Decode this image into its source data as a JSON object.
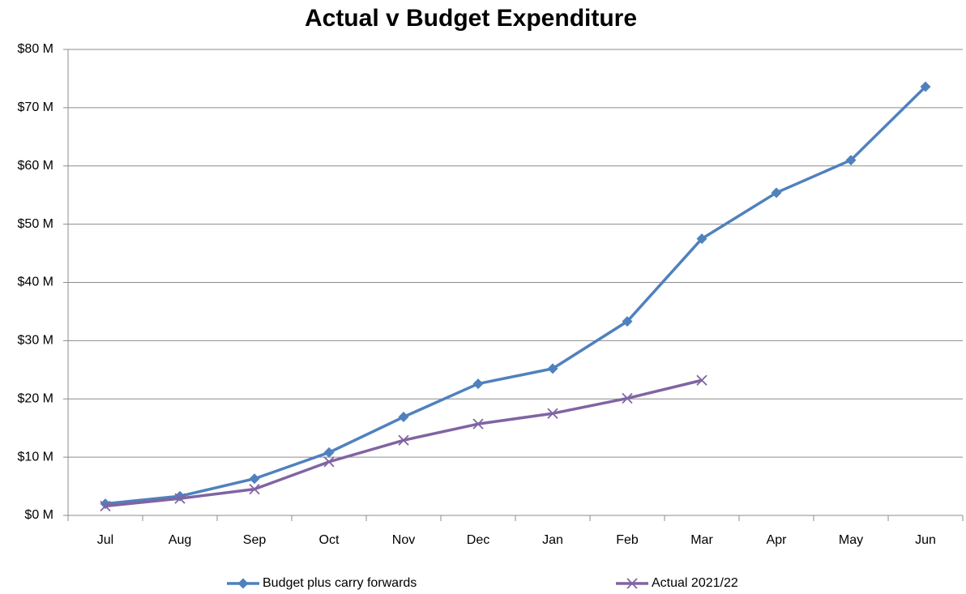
{
  "chart_data": {
    "type": "line",
    "title": "Actual v Budget Expenditure",
    "categories": [
      "Jul",
      "Aug",
      "Sep",
      "Oct",
      "Nov",
      "Dec",
      "Jan",
      "Feb",
      "Mar",
      "Apr",
      "May",
      "Jun"
    ],
    "series": [
      {
        "name": "Budget plus carry forwards",
        "color": "#4f81bd",
        "marker": "diamond",
        "values": [
          2.0,
          3.3,
          6.3,
          10.8,
          16.9,
          22.6,
          25.2,
          33.3,
          47.5,
          55.4,
          61.0,
          73.6
        ]
      },
      {
        "name": "Actual 2021/22",
        "color": "#8064a2",
        "marker": "x",
        "values": [
          1.6,
          2.9,
          4.5,
          9.2,
          12.9,
          15.7,
          17.5,
          20.1,
          23.2,
          null,
          null,
          null
        ]
      }
    ],
    "ylim": [
      0,
      80
    ],
    "yticks": [
      {
        "value": 0,
        "label": "$0 M"
      },
      {
        "value": 10,
        "label": "$10 M"
      },
      {
        "value": 20,
        "label": "$20 M"
      },
      {
        "value": 30,
        "label": "$30 M"
      },
      {
        "value": 40,
        "label": "$40 M"
      },
      {
        "value": 50,
        "label": "$50 M"
      },
      {
        "value": 60,
        "label": "$60 M"
      },
      {
        "value": 70,
        "label": "$70 M"
      },
      {
        "value": 80,
        "label": "$80 M"
      }
    ],
    "grid": true,
    "legend": "bottom"
  }
}
